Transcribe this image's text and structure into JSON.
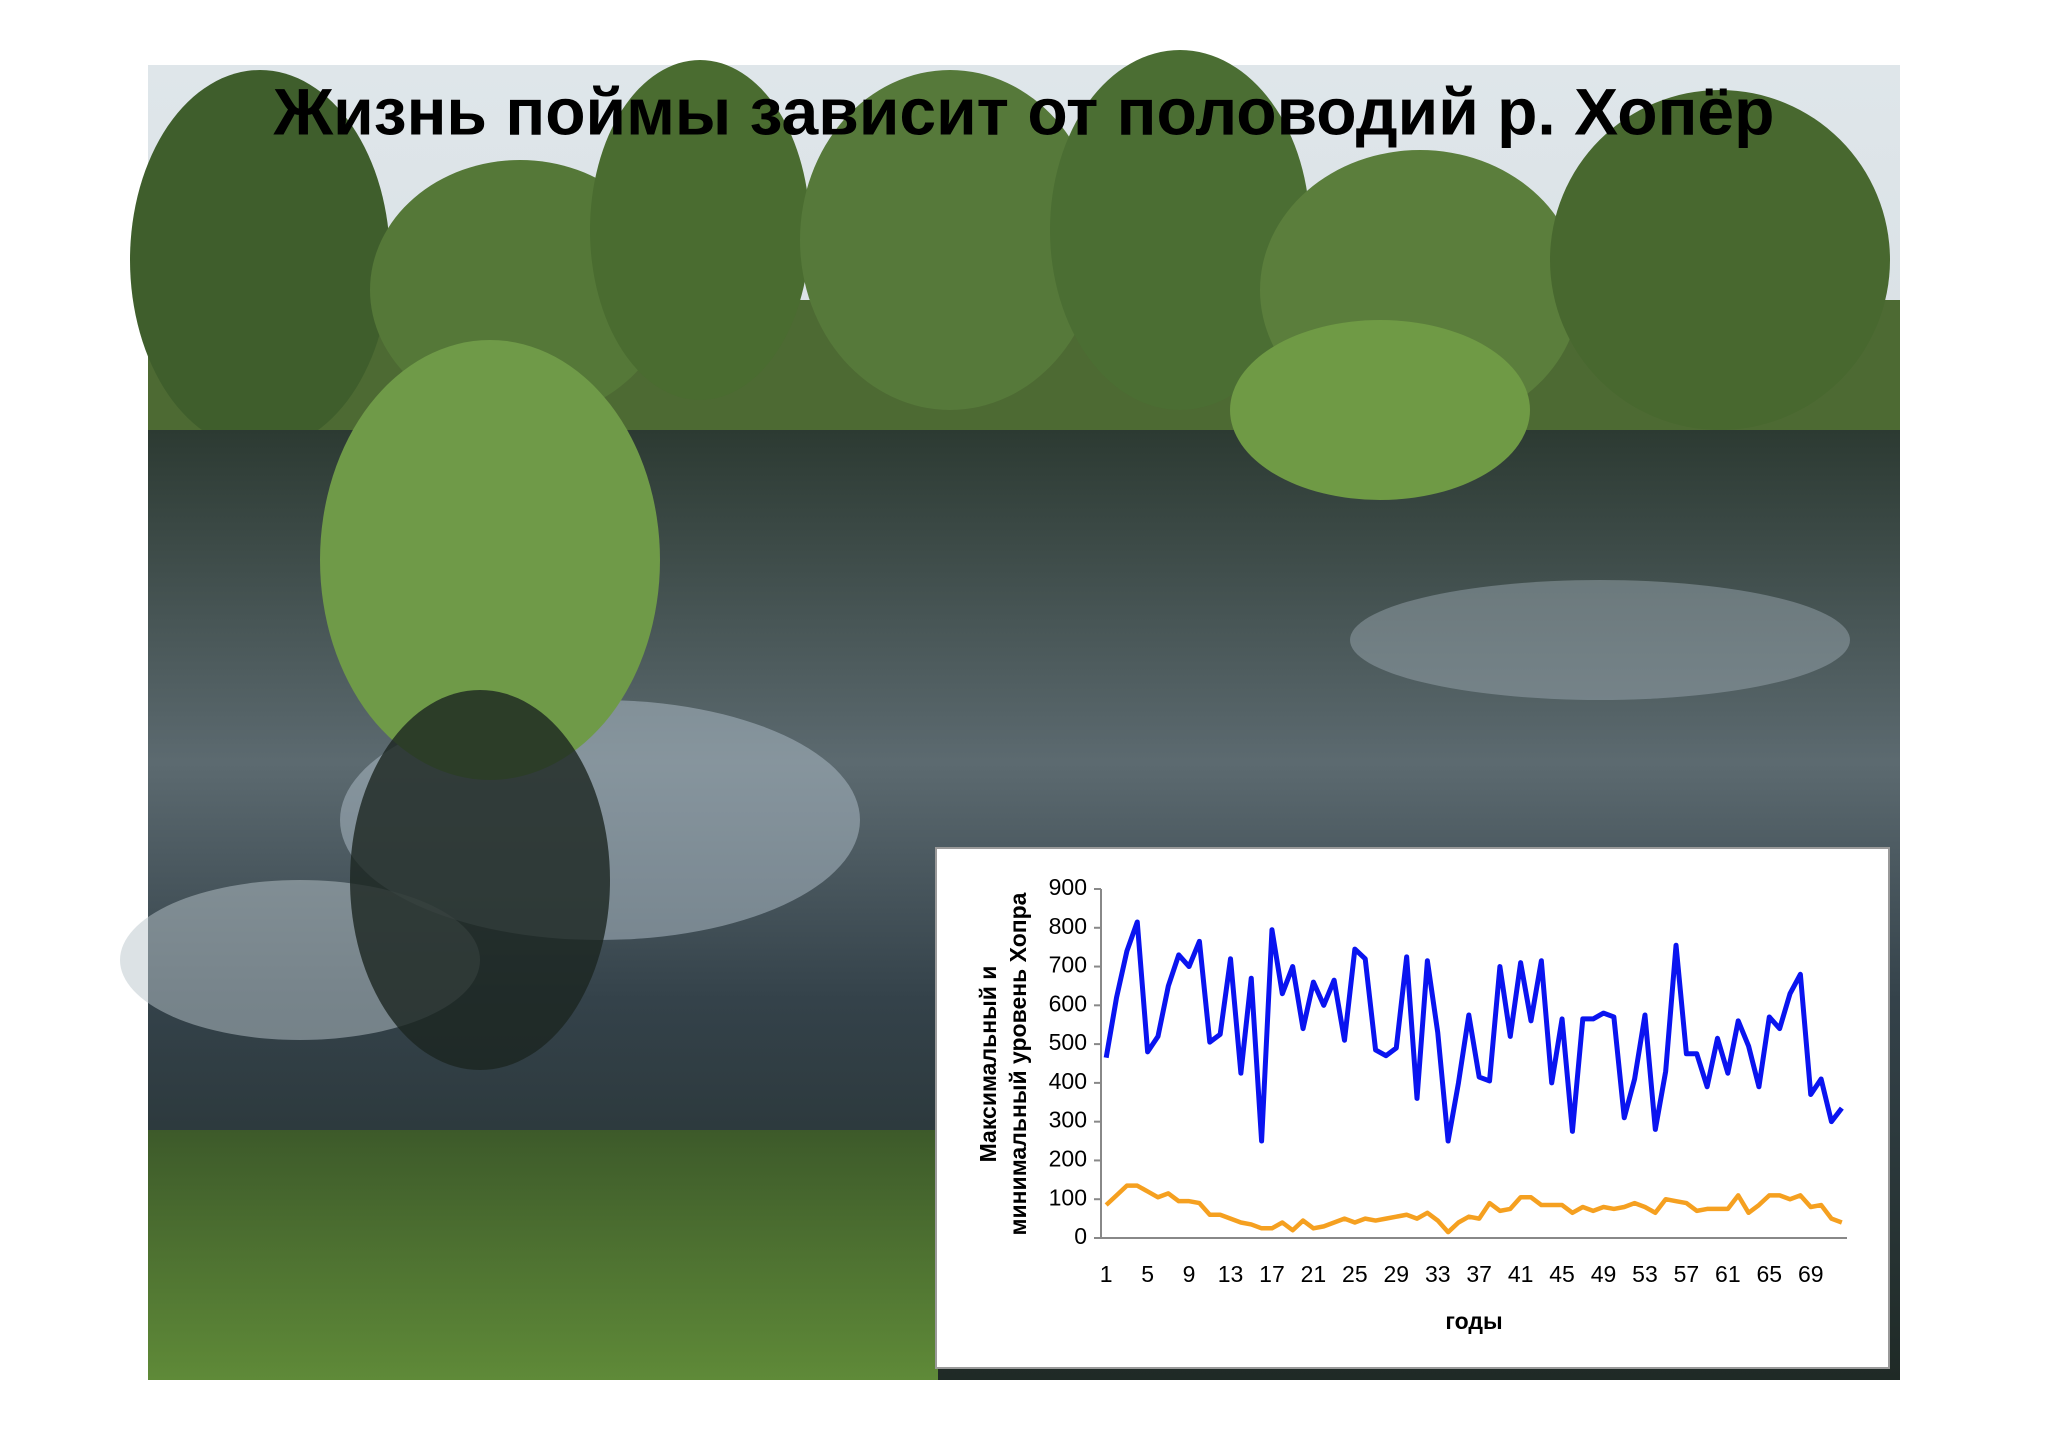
{
  "slide": {
    "title": "Жизнь поймы зависит от половодий р. Хопёр"
  },
  "chart_data": {
    "type": "line",
    "y_label": [
      "Максимальный и",
      "минимальный уровень Хопра"
    ],
    "x_label": "годы",
    "categories": [
      1,
      null,
      null,
      null,
      5,
      null,
      null,
      null,
      9,
      null,
      null,
      null,
      13,
      null,
      null,
      null,
      17,
      null,
      null,
      null,
      21,
      null,
      null,
      null,
      25,
      null,
      null,
      null,
      29,
      null,
      null,
      null,
      33,
      null,
      null,
      null,
      37,
      null,
      null,
      null,
      41,
      null,
      null,
      null,
      45,
      null,
      null,
      null,
      49,
      null,
      null,
      null,
      53,
      null,
      null,
      null,
      57,
      null,
      null,
      null,
      61,
      null,
      null,
      null,
      65,
      null,
      null,
      null,
      69,
      null,
      null,
      null
    ],
    "series": [
      {
        "color": "#0a14f0",
        "values": [
          465,
          620,
          740,
          815,
          480,
          520,
          650,
          730,
          700,
          765,
          505,
          525,
          720,
          425,
          670,
          250,
          795,
          630,
          700,
          540,
          660,
          600,
          665,
          510,
          745,
          720,
          485,
          470,
          490,
          725,
          360,
          715,
          530,
          250,
          400,
          575,
          415,
          405,
          700,
          520,
          710,
          560,
          715,
          400,
          565,
          275,
          565,
          565,
          580,
          570,
          310,
          410,
          575,
          280,
          430,
          755,
          475,
          475,
          390,
          515,
          425,
          560,
          495,
          390,
          570,
          540,
          630,
          680,
          370,
          410,
          300,
          335
        ]
      },
      {
        "color": "#f5a020",
        "values": [
          85,
          110,
          135,
          135,
          120,
          105,
          115,
          95,
          95,
          90,
          60,
          60,
          50,
          40,
          35,
          25,
          25,
          40,
          20,
          45,
          25,
          30,
          40,
          50,
          40,
          50,
          45,
          50,
          55,
          60,
          50,
          65,
          45,
          15,
          40,
          55,
          50,
          90,
          70,
          75,
          105,
          105,
          85,
          85,
          85,
          65,
          80,
          70,
          80,
          75,
          80,
          90,
          80,
          65,
          100,
          95,
          90,
          70,
          75,
          75,
          75,
          110,
          65,
          85,
          110,
          110,
          100,
          110,
          80,
          85,
          50,
          40
        ]
      }
    ],
    "ylim": [
      0,
      900
    ],
    "yticks": [
      0,
      100,
      200,
      300,
      400,
      500,
      600,
      700,
      800,
      900
    ],
    "grid": false
  }
}
